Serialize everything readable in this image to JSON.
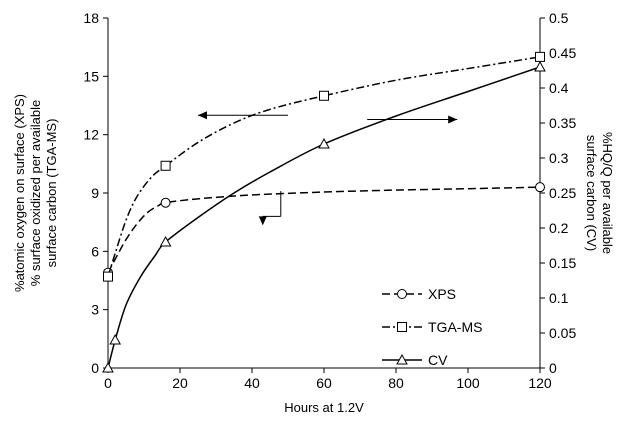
{
  "chart_data": {
    "type": "line",
    "xlabel": "Hours at 1.2V",
    "ylabel_left": [
      "%atomic oxygen on surface (XPS)",
      "% surface oxidized per available",
      "surface carbon (TGA-MS)"
    ],
    "ylabel_right": [
      "%HQ/Q per available",
      "surface carbon  (CV)"
    ],
    "xlim": [
      0,
      120
    ],
    "ylim_left": [
      0,
      18
    ],
    "ylim_right": [
      0,
      0.5
    ],
    "x_ticks": [
      "0",
      "20",
      "40",
      "60",
      "80",
      "100",
      "120"
    ],
    "y_left_ticks": [
      "0",
      "3",
      "6",
      "9",
      "12",
      "15",
      "18"
    ],
    "y_right_ticks": [
      "0",
      "0.05",
      "0.1",
      "0.15",
      "0.2",
      "0.25",
      "0.3",
      "0.35",
      "0.4",
      "0.45",
      "0.5"
    ],
    "series": [
      {
        "name": "XPS",
        "axis": "left",
        "marker": "circle",
        "dash": "dashed",
        "x": [
          0,
          16,
          120
        ],
        "y": [
          4.9,
          8.5,
          9.3
        ],
        "curve_x": [
          0,
          2,
          5,
          8,
          11,
          14,
          16,
          25,
          40,
          60,
          80,
          100,
          120
        ],
        "curve_y": [
          4.9,
          5.6,
          6.6,
          7.4,
          8.0,
          8.35,
          8.5,
          8.7,
          8.9,
          9.05,
          9.15,
          9.22,
          9.3
        ]
      },
      {
        "name": "TGA-MS",
        "axis": "left",
        "marker": "square",
        "dash": "dash-dot",
        "x": [
          0,
          16,
          60,
          120
        ],
        "y": [
          4.7,
          10.4,
          14.0,
          16.0
        ],
        "curve_x": [
          0,
          2,
          5,
          8,
          12,
          16,
          25,
          35,
          45,
          60,
          80,
          100,
          120
        ],
        "curve_y": [
          4.7,
          5.9,
          7.6,
          8.8,
          9.8,
          10.4,
          11.6,
          12.6,
          13.3,
          14.0,
          14.8,
          15.4,
          16.0
        ]
      },
      {
        "name": "CV",
        "axis": "right",
        "marker": "triangle",
        "dash": "solid",
        "x": [
          0,
          2,
          16,
          60,
          120
        ],
        "y": [
          0.0,
          0.04,
          0.18,
          0.32,
          0.43
        ],
        "curve_x": [
          0,
          2,
          5,
          9,
          13,
          16,
          25,
          35,
          45,
          60,
          80,
          100,
          120
        ],
        "curve_y": [
          0.0,
          0.04,
          0.09,
          0.13,
          0.16,
          0.18,
          0.215,
          0.25,
          0.28,
          0.32,
          0.36,
          0.395,
          0.43
        ]
      }
    ],
    "annotations": [
      {
        "direction": "left",
        "axis": "left",
        "x_from": 50,
        "x_to": 25,
        "y": 13.0
      },
      {
        "direction": "right",
        "axis": "right",
        "x_from": 72,
        "x_to": 97,
        "y": 0.355
      },
      {
        "direction": "down",
        "axis": "left",
        "x": 48,
        "y_from": 9.1,
        "y_to": 7.8,
        "tail_x_to": 43
      }
    ]
  }
}
